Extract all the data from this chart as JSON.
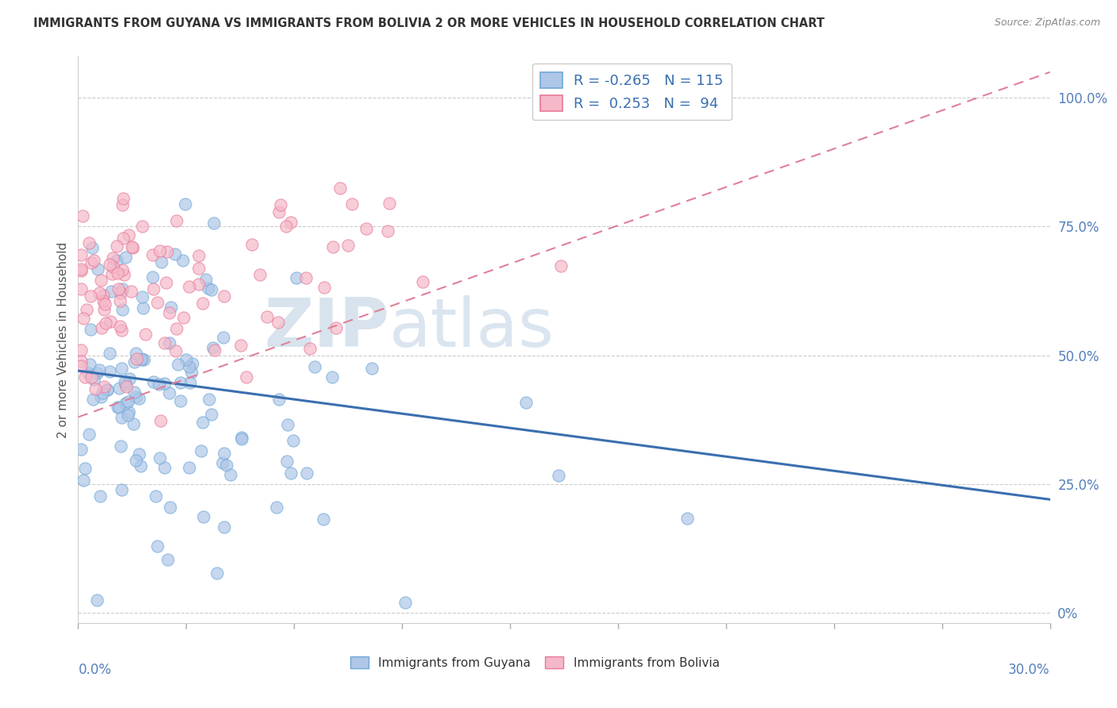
{
  "title": "IMMIGRANTS FROM GUYANA VS IMMIGRANTS FROM BOLIVIA 2 OR MORE VEHICLES IN HOUSEHOLD CORRELATION CHART",
  "source": "Source: ZipAtlas.com",
  "ylabel": "2 or more Vehicles in Household",
  "legend_guyana": "Immigrants from Guyana",
  "legend_bolivia": "Immigrants from Bolivia",
  "R_guyana": -0.265,
  "N_guyana": 115,
  "R_bolivia": 0.253,
  "N_bolivia": 94,
  "color_guyana": "#aec6e8",
  "color_bolivia": "#f5b8c8",
  "edge_guyana": "#6fa8d8",
  "edge_bolivia": "#e87898",
  "line_color_guyana": "#3a6fb0",
  "line_color_bolivia": "#e08098",
  "ytick_vals": [
    0.0,
    0.25,
    0.5,
    0.75,
    1.0
  ],
  "ytick_labels": [
    "0%",
    "25.0%",
    "50.0%",
    "75.0%",
    "100.0%"
  ],
  "xlim": [
    0.0,
    0.3
  ],
  "ylim": [
    -0.02,
    1.08
  ],
  "watermark_zip": "ZIP",
  "watermark_atlas": "atlas"
}
